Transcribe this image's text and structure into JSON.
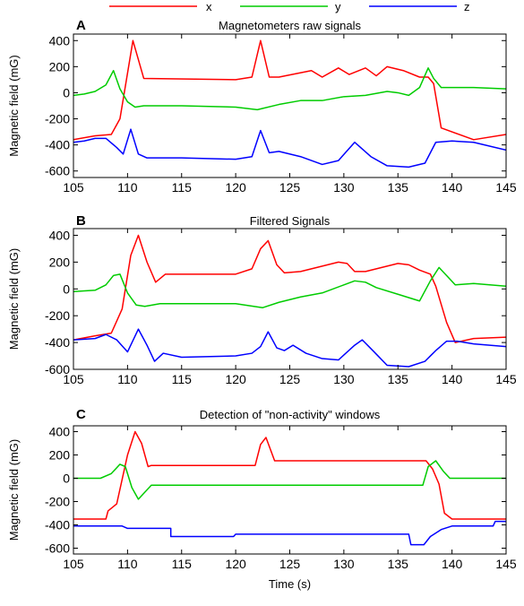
{
  "colors": {
    "x": "#ff0000",
    "y": "#00cc00",
    "z": "#0000ff"
  },
  "legend": {
    "entries": [
      "x",
      "y",
      "z"
    ],
    "placement": "top"
  },
  "chart_data": [
    {
      "letter": "A",
      "type": "line",
      "title": "Magnetometers raw signals",
      "ylabel": "Magnetic field (mG)",
      "xlabel": "",
      "xlim": [
        105,
        145
      ],
      "ylim": [
        -650,
        450
      ],
      "xticks": [
        105,
        110,
        115,
        120,
        125,
        130,
        135,
        140,
        145
      ],
      "yticks": [
        400,
        200,
        0,
        -200,
        -400,
        -600
      ],
      "grid": false,
      "series": [
        {
          "name": "x",
          "color": "#ff0000",
          "x": [
            105,
            107,
            108.5,
            109.3,
            110.5,
            111.5,
            120,
            121.5,
            122.3,
            123.1,
            124,
            127,
            128,
            129.5,
            130.5,
            132,
            133,
            134,
            135.5,
            137,
            137.8,
            138.3,
            139,
            142,
            145
          ],
          "y": [
            -360,
            -330,
            -320,
            -200,
            400,
            110,
            100,
            120,
            400,
            120,
            120,
            170,
            120,
            190,
            140,
            190,
            130,
            200,
            170,
            120,
            120,
            70,
            -270,
            -360,
            -320
          ]
        },
        {
          "name": "y",
          "color": "#00cc00",
          "x": [
            105,
            106,
            107,
            108,
            108.7,
            109.3,
            110,
            110.7,
            111.5,
            115,
            120,
            122,
            124,
            126,
            128,
            130,
            132,
            134,
            135,
            136,
            137,
            137.8,
            138.3,
            139,
            142,
            145
          ],
          "y": [
            -20,
            -10,
            10,
            60,
            170,
            30,
            -70,
            -110,
            -100,
            -100,
            -110,
            -130,
            -90,
            -60,
            -60,
            -30,
            -20,
            10,
            0,
            -20,
            40,
            190,
            110,
            40,
            40,
            30
          ]
        },
        {
          "name": "z",
          "color": "#0000ff",
          "x": [
            105,
            106,
            107,
            108,
            109,
            109.6,
            110.3,
            111,
            111.8,
            115,
            120,
            121.5,
            122.3,
            123.1,
            124,
            126,
            128,
            129.5,
            131,
            132.5,
            134,
            136,
            137.5,
            138.5,
            140,
            142,
            145
          ],
          "y": [
            -380,
            -370,
            -350,
            -350,
            -420,
            -470,
            -280,
            -470,
            -500,
            -500,
            -510,
            -490,
            -290,
            -460,
            -450,
            -490,
            -550,
            -520,
            -380,
            -490,
            -560,
            -570,
            -540,
            -380,
            -370,
            -380,
            -440
          ]
        }
      ]
    },
    {
      "letter": "B",
      "type": "line",
      "title": "Filtered Signals",
      "ylabel": "Magnetic field (mG)",
      "xlabel": "",
      "xlim": [
        105,
        145
      ],
      "ylim": [
        -600,
        450
      ],
      "xticks": [
        105,
        110,
        115,
        120,
        125,
        130,
        135,
        140,
        145
      ],
      "yticks": [
        400,
        200,
        0,
        -200,
        -400,
        -600
      ],
      "grid": false,
      "series": [
        {
          "name": "x",
          "color": "#ff0000",
          "x": [
            105,
            107,
            108.5,
            109.5,
            110.3,
            111,
            111.8,
            112.6,
            113.5,
            120,
            121.5,
            122.3,
            123,
            123.8,
            124.5,
            126,
            128,
            129.5,
            130.3,
            131,
            132,
            134,
            135,
            136,
            137,
            138,
            138.5,
            139.5,
            140.3,
            142,
            145
          ],
          "y": [
            -380,
            -350,
            -330,
            -150,
            250,
            400,
            200,
            50,
            110,
            110,
            150,
            300,
            360,
            180,
            120,
            130,
            170,
            200,
            190,
            130,
            130,
            170,
            190,
            180,
            140,
            110,
            20,
            -250,
            -400,
            -370,
            -360
          ]
        },
        {
          "name": "y",
          "color": "#00cc00",
          "x": [
            105,
            107,
            108,
            108.7,
            109.3,
            110,
            110.8,
            111.6,
            113,
            120,
            122.5,
            124,
            126,
            128,
            130,
            131,
            132,
            133,
            135,
            137,
            138,
            138.8,
            139.5,
            140.3,
            142,
            145
          ],
          "y": [
            -20,
            -10,
            30,
            100,
            110,
            -30,
            -120,
            -130,
            -110,
            -110,
            -140,
            -100,
            -60,
            -30,
            30,
            60,
            50,
            10,
            -40,
            -90,
            60,
            160,
            100,
            30,
            40,
            20
          ]
        },
        {
          "name": "z",
          "color": "#0000ff",
          "x": [
            105,
            107,
            108,
            109,
            110,
            111,
            111.8,
            112.5,
            113.3,
            115,
            120,
            121.5,
            122.3,
            123,
            123.8,
            124.5,
            125.3,
            126.5,
            128,
            129.5,
            131,
            131.7,
            132.8,
            134,
            136,
            137.5,
            138.5,
            139.5,
            140.5,
            142,
            145
          ],
          "y": [
            -380,
            -370,
            -340,
            -380,
            -470,
            -300,
            -420,
            -540,
            -480,
            -510,
            -500,
            -480,
            -430,
            -320,
            -440,
            -460,
            -420,
            -480,
            -520,
            -530,
            -420,
            -380,
            -470,
            -570,
            -580,
            -540,
            -460,
            -390,
            -390,
            -410,
            -430
          ]
        }
      ]
    },
    {
      "letter": "C",
      "type": "line",
      "title": "Detection of \"non-activity\" windows",
      "ylabel": "Magnetic field (mG)",
      "xlabel": "Time (s)",
      "xlim": [
        105,
        145
      ],
      "ylim": [
        -650,
        450
      ],
      "xticks": [
        105,
        110,
        115,
        120,
        125,
        130,
        135,
        140,
        145
      ],
      "yticks": [
        400,
        200,
        0,
        -200,
        -400,
        -600
      ],
      "grid": false,
      "series": [
        {
          "name": "x",
          "color": "#ff0000",
          "x": [
            105,
            108,
            108.2,
            109,
            110,
            110.7,
            111.3,
            111.9,
            112.2,
            120,
            121.8,
            122.3,
            122.8,
            123.2,
            123.6,
            124,
            137,
            137.6,
            138.2,
            138.8,
            139.3,
            140,
            145
          ],
          "y": [
            -350,
            -350,
            -280,
            -220,
            200,
            400,
            300,
            100,
            110,
            110,
            110,
            290,
            350,
            250,
            150,
            150,
            150,
            150,
            80,
            -50,
            -300,
            -350,
            -350
          ]
        },
        {
          "name": "y",
          "color": "#00cc00",
          "x": [
            105,
            107.5,
            108.5,
            109.3,
            109.8,
            110.4,
            111,
            111.7,
            112.2,
            137.3,
            137.8,
            138.5,
            139.2,
            139.8,
            145
          ],
          "y": [
            0,
            0,
            40,
            120,
            100,
            -80,
            -180,
            -110,
            -60,
            -60,
            100,
            150,
            60,
            0,
            0
          ]
        },
        {
          "name": "z",
          "color": "#0000ff",
          "x": [
            105,
            109.5,
            110,
            114,
            114,
            119.8,
            120,
            136,
            136.2,
            137.4,
            138,
            139,
            140,
            140.5,
            143.8,
            144,
            145
          ],
          "y": [
            -410,
            -410,
            -430,
            -430,
            -500,
            -500,
            -480,
            -480,
            -570,
            -570,
            -500,
            -440,
            -410,
            -410,
            -410,
            -370,
            -370
          ]
        }
      ]
    }
  ]
}
